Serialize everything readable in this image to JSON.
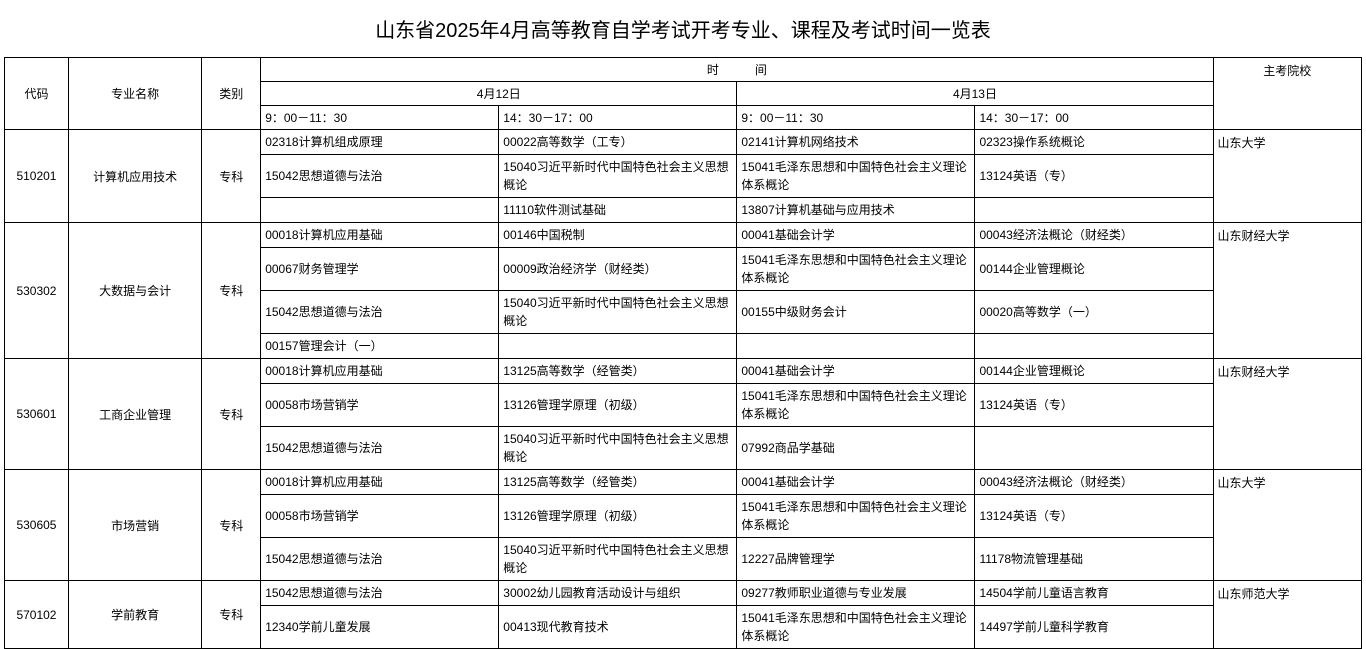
{
  "title": "山东省2025年4月高等教育自学考试开考专业、课程及考试时间一览表",
  "headers": {
    "code": "代码",
    "major": "专业名称",
    "category": "类别",
    "time": "时　　　间",
    "date1": "4月12日",
    "date2": "4月13日",
    "slot1": "9：00－11：30",
    "slot2": "14：30－17：00",
    "slot3": "9：00－11：30",
    "slot4": "14：30－17：00",
    "school": "主考院校"
  },
  "rows": [
    {
      "code": "510201",
      "major": "计算机应用技术",
      "category": "专科",
      "school": "山东大学",
      "slots": {
        "s1": [
          "02318计算机组成原理",
          "15042思想道德与法治",
          ""
        ],
        "s2": [
          "00022高等数学（工专）",
          "15040习近平新时代中国特色社会主义思想概论",
          "11110软件测试基础"
        ],
        "s3": [
          "02141计算机网络技术",
          "15041毛泽东思想和中国特色社会主义理论体系概论",
          "13807计算机基础与应用技术"
        ],
        "s4": [
          "02323操作系统概论",
          "13124英语（专）",
          ""
        ]
      }
    },
    {
      "code": "530302",
      "major": "大数据与会计",
      "category": "专科",
      "school": "山东财经大学",
      "slots": {
        "s1": [
          "00018计算机应用基础",
          "00067财务管理学",
          "15042思想道德与法治",
          "00157管理会计（一）"
        ],
        "s2": [
          "00146中国税制",
          "00009政治经济学（财经类）",
          "15040习近平新时代中国特色社会主义思想概论",
          ""
        ],
        "s3": [
          "00041基础会计学",
          "15041毛泽东思想和中国特色社会主义理论体系概论",
          "00155中级财务会计",
          ""
        ],
        "s4": [
          "00043经济法概论（财经类）",
          "00144企业管理概论",
          "00020高等数学（一）",
          ""
        ]
      }
    },
    {
      "code": "530601",
      "major": "工商企业管理",
      "category": "专科",
      "school": "山东财经大学",
      "slots": {
        "s1": [
          "00018计算机应用基础",
          "00058市场营销学",
          "15042思想道德与法治"
        ],
        "s2": [
          "13125高等数学（经管类）",
          "13126管理学原理（初级）",
          "15040习近平新时代中国特色社会主义思想概论"
        ],
        "s3": [
          "00041基础会计学",
          "15041毛泽东思想和中国特色社会主义理论体系概论",
          "07992商品学基础"
        ],
        "s4": [
          "00144企业管理概论",
          "13124英语（专）",
          ""
        ]
      }
    },
    {
      "code": "530605",
      "major": "市场营销",
      "category": "专科",
      "school": "山东大学",
      "slots": {
        "s1": [
          "00018计算机应用基础",
          "00058市场营销学",
          "15042思想道德与法治"
        ],
        "s2": [
          "13125高等数学（经管类）",
          "13126管理学原理（初级）",
          "15040习近平新时代中国特色社会主义思想概论"
        ],
        "s3": [
          "00041基础会计学",
          "15041毛泽东思想和中国特色社会主义理论体系概论",
          "12227品牌管理学"
        ],
        "s4": [
          "00043经济法概论（财经类）",
          "13124英语（专）",
          "11178物流管理基础"
        ]
      }
    },
    {
      "code": "570102",
      "major": "学前教育",
      "category": "专科",
      "school": "山东师范大学",
      "slots": {
        "s1": [
          "15042思想道德与法治",
          "12340学前儿童发展"
        ],
        "s2": [
          "30002幼儿园教育活动设计与组织",
          "00413现代教育技术"
        ],
        "s3": [
          "09277教师职业道德与专业发展",
          "15041毛泽东思想和中国特色社会主义理论体系概论"
        ],
        "s4": [
          "14504学前儿童语言教育",
          "14497学前儿童科学教育"
        ]
      }
    }
  ]
}
